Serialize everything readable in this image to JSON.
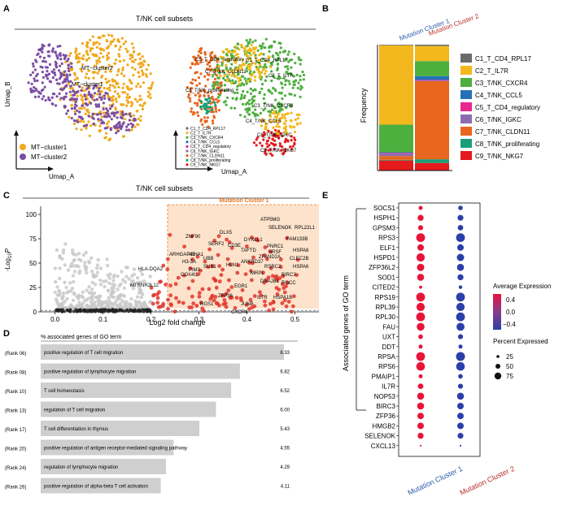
{
  "panels": {
    "a": {
      "letter": "A",
      "title": "T/NK cell subsets",
      "xlabel": "Umap_A",
      "ylabel": "Umap_B",
      "cluster_labels": [
        "MT−cluster2",
        "MT−cluster1"
      ],
      "legend": [
        {
          "label": "MT−cluster1",
          "color": "#F2A81D"
        },
        {
          "label": "MT−cluster2",
          "color": "#7B4FA3"
        }
      ],
      "subset_labels": [
        "C5_T_CD4_regulatory",
        "C1_T_CD4_RPL17",
        "C7_T/NK_CLDN11",
        "C2_T_IL7R",
        "C8_T/NK_proliferating",
        "C3_T/NK_CXCR4",
        "C4_T/NK_CCL5",
        "C6_T/NK_IGKC",
        "C9_T/NK_NKG7"
      ],
      "xlabel2": "Umap_A"
    },
    "b": {
      "letter": "B",
      "ylabel": "Frequency",
      "col_labels": [
        {
          "label": "Mutation Cluster 1",
          "color": "#2B5BA8"
        },
        {
          "label": "Mutation Cluster 2",
          "color": "#B5302A"
        }
      ]
    },
    "c": {
      "letter": "C",
      "title": "T/NK cell subsets",
      "highlight_label": "Mutation Cluster 1",
      "xlabel": "Log2 fold change",
      "ylabel_prefix": "-Log",
      "ylabel_sub": "10",
      "ylabel_p": "P",
      "xticks": [
        "0.0",
        "0.1",
        "0.2",
        "0.3",
        "0.4",
        "0.5"
      ],
      "yticks": [
        "0",
        "25",
        "50",
        "75",
        "100"
      ],
      "genes": [
        "ATP5MG",
        "SELENOK",
        "RPL22L1",
        "DLX5",
        "FAM133B",
        "ZNF90",
        "DYNLL1",
        "SERF2",
        "CD3E",
        "PNRC1",
        "HSPA8",
        "TAFTD",
        "SRSF",
        "ZFAND2A",
        "ARHGAP45",
        "IGHA1",
        "UBB",
        "CLEC2B",
        "ANKRD37",
        "H3-3A",
        "SUB1",
        "HSPA6",
        "RSRC2",
        "HLA-DQA2",
        "PIM3",
        "HLN1",
        "BIRC3",
        "COX4I1",
        "MRPL",
        "RGCC",
        "DNAJB1",
        "MTRNR2L12",
        "EGR1",
        "ZFP36",
        "IL7R",
        "HSPA1B",
        "RGS1",
        "JUNB",
        "CXCR4"
      ]
    },
    "d": {
      "letter": "D",
      "header": "% associated genes of GO term"
    },
    "e": {
      "letter": "E",
      "ylabel": "Associated genes of GO term",
      "genes": [
        "SOCS1",
        "HSPH1",
        "GPSM3",
        "RPS3",
        "ELF1",
        "HSPD1",
        "ZFP36L2",
        "SOD1",
        "CITED2",
        "RPS19",
        "RPL39",
        "RPL30",
        "FAU",
        "UXT",
        "DDT",
        "RPSA",
        "RPS6",
        "PMAIP1",
        "IL7R",
        "NOP53",
        "BIRC3",
        "ZFP36",
        "HMGB2",
        "SELENOK",
        "CXCL13"
      ],
      "xlabels": [
        {
          "label": "Mutation Cluster 1",
          "color": "#2B5BA8"
        },
        {
          "label": "Mutation Cluster 2",
          "color": "#B5302A"
        }
      ],
      "avg_title": "Average Expression",
      "avg_ticks": [
        "0.4",
        "0.0",
        "−0.4"
      ],
      "pct_title": "Percent Expressed",
      "pct_ticks": [
        "25",
        "50",
        "75"
      ]
    }
  },
  "chart_data": [
    {
      "type": "bar",
      "panel": "B",
      "stacked": true,
      "categories": [
        "Mutation Cluster 1",
        "Mutation Cluster 2"
      ],
      "series": [
        {
          "name": "C1_T_CD4_RPL17",
          "color": "#6B6B6B",
          "values": [
            0.005,
            0.01
          ]
        },
        {
          "name": "C2_T_IL7R",
          "color": "#F2B81D",
          "values": [
            0.63,
            0.12
          ]
        },
        {
          "name": "C3_T/NK_CXCR4",
          "color": "#4DAF3E",
          "values": [
            0.22,
            0.12
          ]
        },
        {
          "name": "C4_T/NK_CCL5",
          "color": "#2471B8",
          "values": [
            0.005,
            0.03
          ]
        },
        {
          "name": "C5_T_CD4_regulatory",
          "color": "#E8288F",
          "values": [
            0.005,
            0.005
          ]
        },
        {
          "name": "C6_T/NK_IGKC",
          "color": "#8C6BB1",
          "values": [
            0.02,
            0.005
          ]
        },
        {
          "name": "C7_T/NK_CLDN11",
          "color": "#E8661E",
          "values": [
            0.03,
            0.62
          ]
        },
        {
          "name": "C8_T/NK_proliferating",
          "color": "#1A9E77",
          "values": [
            0.005,
            0.03
          ]
        },
        {
          "name": "C9_T/NK_NKG7",
          "color": "#E41A1C",
          "values": [
            0.08,
            0.06
          ]
        }
      ]
    },
    {
      "type": "bar",
      "panel": "D",
      "orientation": "horizontal",
      "categories": [
        "positive regulation of T cell migration",
        "positive regulation of lymphocyte migration",
        "T cell homeostasis",
        "regulation of T cell migration",
        "T cell differentiation in thymus",
        "positive regulation of antigen receptor-mediated signaling pathway",
        "regulation of lymphocyte migration",
        "positive regulation of alpha-beta T cell activation"
      ],
      "ranks": [
        "(Rank 06)",
        "(Rank 08)",
        "(Rank 10)",
        "(Rank 13)",
        "(Rank 17)",
        "(Rank 20)",
        "(Rank 24)",
        "(Rank 26)"
      ],
      "values": [
        8.33,
        6.82,
        6.52,
        6.0,
        5.43,
        4.55,
        4.29,
        4.11
      ],
      "value_labels": [
        "8.33",
        "6.82",
        "6.52",
        "6.00",
        "5.43",
        "4.55",
        "4.29",
        "4.11"
      ],
      "xlim": [
        0,
        8.8
      ]
    },
    {
      "type": "scatter",
      "panel": "E",
      "x_categories": [
        "Mutation Cluster 1",
        "Mutation Cluster 2"
      ],
      "avg_expression_c1": [
        0.45,
        0.45,
        0.45,
        0.45,
        0.45,
        0.45,
        0.45,
        0.45,
        0.45,
        0.45,
        0.45,
        0.45,
        0.45,
        0.45,
        0.45,
        0.45,
        0.45,
        0.45,
        0.45,
        0.45,
        0.45,
        0.45,
        0.45,
        0.45,
        0.45
      ],
      "avg_expression_c2": [
        -0.45,
        -0.45,
        -0.45,
        -0.45,
        -0.45,
        -0.45,
        -0.45,
        -0.45,
        -0.45,
        -0.45,
        -0.45,
        -0.45,
        -0.45,
        -0.45,
        -0.45,
        -0.45,
        -0.45,
        -0.45,
        -0.45,
        -0.45,
        -0.45,
        -0.45,
        -0.45,
        -0.45,
        -0.45
      ],
      "pct_expressed_c1": [
        30,
        50,
        40,
        80,
        55,
        75,
        65,
        60,
        20,
        80,
        75,
        80,
        70,
        35,
        30,
        80,
        78,
        30,
        45,
        60,
        60,
        55,
        55,
        50,
        5
      ],
      "pct_expressed_c2": [
        35,
        48,
        45,
        80,
        55,
        65,
        60,
        50,
        25,
        80,
        75,
        80,
        72,
        40,
        30,
        82,
        78,
        35,
        40,
        60,
        55,
        55,
        55,
        48,
        5
      ]
    },
    {
      "type": "scatter",
      "panel": "C",
      "xlabel": "Log2 fold change",
      "ylabel": "-Log10 P",
      "xlim": [
        -0.03,
        0.55
      ],
      "ylim": [
        0,
        105
      ],
      "threshold_x": 0.2,
      "threshold_y": 1.5
    }
  ]
}
